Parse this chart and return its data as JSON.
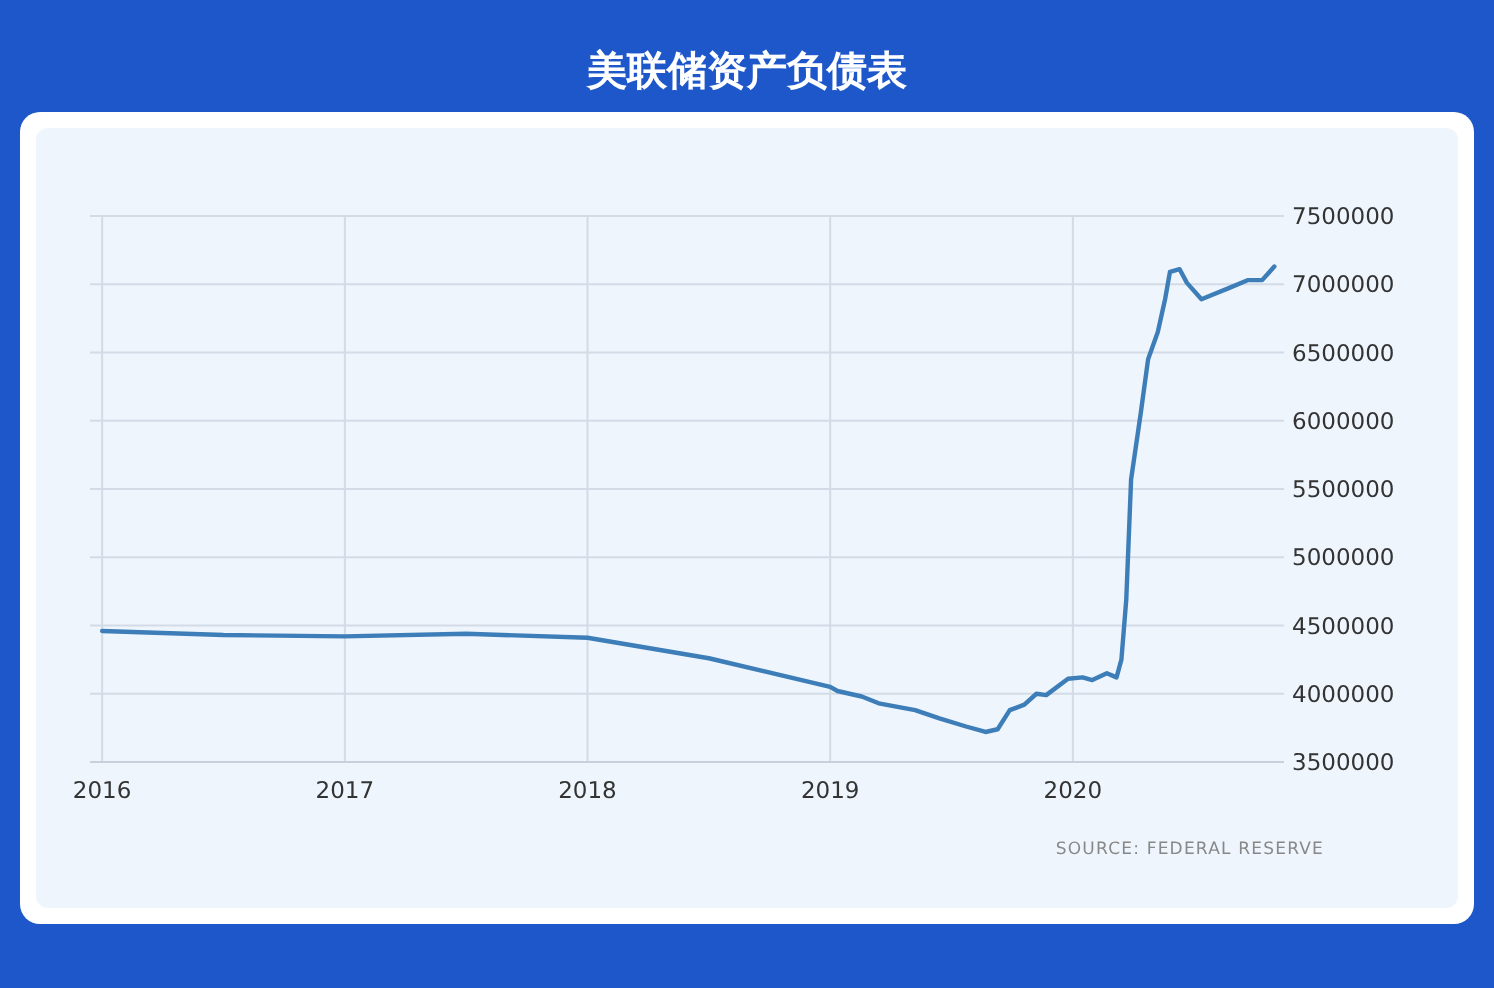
{
  "chart_data": {
    "type": "line",
    "title": "美联储资产负债表",
    "x": [
      2016,
      2016.5,
      2017,
      2017.5,
      2018,
      2018.5,
      2019,
      2019.03,
      2019.13,
      2019.2,
      2019.35,
      2019.45,
      2019.56,
      2019.64,
      2019.69,
      2019.74,
      2019.8,
      2019.85,
      2019.89,
      2019.98,
      2020.04,
      2020.08,
      2020.14,
      2020.18,
      2020.2,
      2020.22,
      2020.24,
      2020.28,
      2020.31,
      2020.35,
      2020.38,
      2020.4,
      2020.44,
      2020.47,
      2020.53,
      2020.57,
      2020.64,
      2020.72,
      2020.78,
      2020.83
    ],
    "series": [
      {
        "color": "#3d7db8",
        "values": [
          4460000,
          4430000,
          4420000,
          4440000,
          4410000,
          4260000,
          4050000,
          4020000,
          3980000,
          3930000,
          3880000,
          3820000,
          3760000,
          3720000,
          3740000,
          3880000,
          3920000,
          4000000,
          3990000,
          4110000,
          4120000,
          4100000,
          4150000,
          4120000,
          4250000,
          4690000,
          5570000,
          6060000,
          6450000,
          6650000,
          6890000,
          7090000,
          7110000,
          7010000,
          6890000,
          6920000,
          6970000,
          7030000,
          7030000,
          7130000
        ]
      }
    ],
    "xlim": [
      2015.95,
      2020.87
    ],
    "xticks": [
      2016,
      2017,
      2018,
      2019,
      2020
    ],
    "ylim": [
      3500000,
      7500000
    ],
    "yticks": [
      3500000,
      4000000,
      4500000,
      5000000,
      5500000,
      6000000,
      6500000,
      7000000,
      7500000
    ],
    "grid": true,
    "annotations": [
      "SOURCE: FEDERAL RESERVE"
    ]
  }
}
